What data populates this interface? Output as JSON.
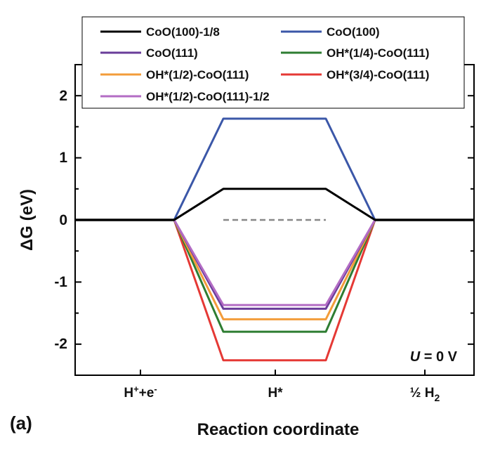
{
  "panel_label": "(a)",
  "chart_data": {
    "type": "line",
    "title": "",
    "xlabel": "Reaction coordinate",
    "ylabel": "ΔG (eV)",
    "ylim": [
      -2.5,
      2.5
    ],
    "yticks": [
      "2",
      "1",
      "0",
      "-1",
      "-2"
    ],
    "categories": [
      {
        "base": "H",
        "sup": "+",
        "mid": "+e",
        "sup2": "-",
        "sub": ""
      },
      {
        "base": "H*",
        "sup": "",
        "mid": "",
        "sup2": "",
        "sub": ""
      },
      {
        "base": "½ H",
        "sup": "",
        "mid": "",
        "sup2": "",
        "sub": "2"
      }
    ],
    "annotation": {
      "italic": "U",
      "rest": " = 0 V"
    },
    "series": [
      {
        "name": "CoO(100)-1/8",
        "color": "#000000",
        "values": [
          0,
          0.5,
          0
        ]
      },
      {
        "name": "CoO(100)",
        "color": "#3b57a8",
        "values": [
          0,
          1.63,
          0
        ]
      },
      {
        "name": "CoO(111)",
        "color": "#6a3d9a",
        "values": [
          0,
          -1.43,
          0
        ]
      },
      {
        "name": "OH*(1/4)-CoO(111)",
        "color": "#2e7d32",
        "values": [
          0,
          -1.8,
          0
        ]
      },
      {
        "name": "OH*(1/2)-CoO(111)",
        "color": "#f39c3a",
        "values": [
          0,
          -1.6,
          0
        ]
      },
      {
        "name": "OH*(3/4)-CoO(111)",
        "color": "#e53935",
        "values": [
          0,
          -2.26,
          0
        ]
      },
      {
        "name": "OH*(1/2)-CoO(111)-1/2",
        "color": "#b36cc4",
        "values": [
          0,
          -1.37,
          0
        ]
      }
    ]
  }
}
